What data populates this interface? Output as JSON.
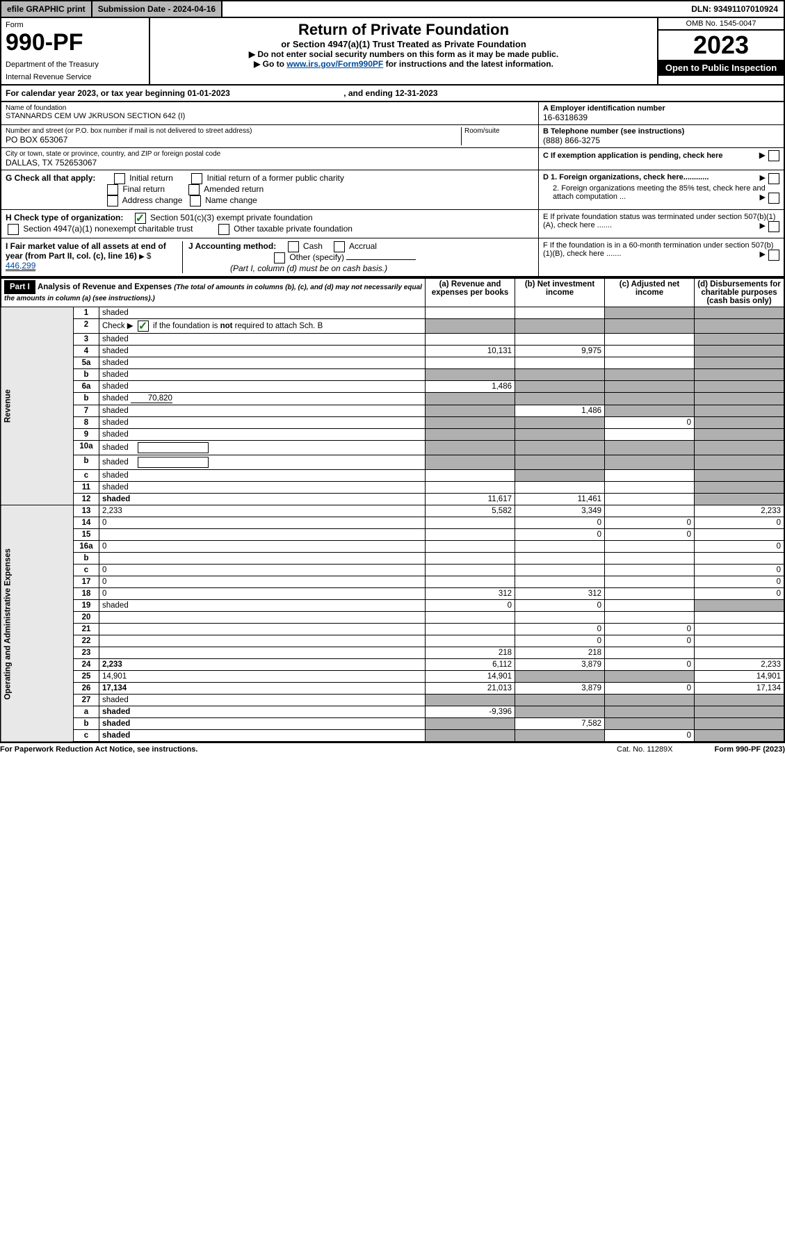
{
  "topbar": {
    "efile": "efile GRAPHIC print",
    "subdate_label": "Submission Date - 2024-04-16",
    "dln": "DLN: 93491107010924"
  },
  "header": {
    "form_label": "Form",
    "form_no": "990-PF",
    "dept": "Department of the Treasury",
    "irs": "Internal Revenue Service",
    "title": "Return of Private Foundation",
    "subtitle": "or Section 4947(a)(1) Trust Treated as Private Foundation",
    "instr1": "▶ Do not enter social security numbers on this form as it may be made public.",
    "instr2_pre": "▶ Go to ",
    "instr2_link": "www.irs.gov/Form990PF",
    "instr2_post": " for instructions and the latest information.",
    "omb": "OMB No. 1545-0047",
    "year": "2023",
    "open": "Open to Public Inspection"
  },
  "cal": {
    "text_pre": "For calendar year 2023, or tax year beginning ",
    "begin": "01-01-2023",
    "text_mid": " , and ending ",
    "end": "12-31-2023"
  },
  "id": {
    "name_label": "Name of foundation",
    "name": "STANNARDS CEM UW JKRUSON SECTION 642 (I)",
    "ein_label": "A Employer identification number",
    "ein": "16-6318639",
    "addr_label": "Number and street (or P.O. box number if mail is not delivered to street address)",
    "addr": "PO BOX 653067",
    "room_label": "Room/suite",
    "tel_label": "B Telephone number (see instructions)",
    "tel": "(888) 866-3275",
    "city_label": "City or town, state or province, country, and ZIP or foreign postal code",
    "city": "DALLAS, TX  752653067",
    "c_label": "C If exemption application is pending, check here"
  },
  "checks": {
    "g_label": "G Check all that apply:",
    "g_opts": [
      "Initial return",
      "Initial return of a former public charity",
      "Final return",
      "Amended return",
      "Address change",
      "Name change"
    ],
    "h_label": "H Check type of organization:",
    "h_501c3": "Section 501(c)(3) exempt private foundation",
    "h_4947": "Section 4947(a)(1) nonexempt charitable trust",
    "h_other": "Other taxable private foundation",
    "d1": "D 1. Foreign organizations, check here............",
    "d2": "2. Foreign organizations meeting the 85% test, check here and attach computation ...",
    "e": "E  If private foundation status was terminated under section 507(b)(1)(A), check here .......",
    "f": "F  If the foundation is in a 60-month termination under section 507(b)(1)(B), check here .......",
    "i_label": "I Fair market value of all assets at end of year (from Part II, col. (c), line 16)",
    "i_val": "446,299",
    "j_label": "J Accounting method:",
    "j_cash": "Cash",
    "j_accrual": "Accrual",
    "j_other": "Other (specify)",
    "j_note": "(Part I, column (d) must be on cash basis.)"
  },
  "part1": {
    "label": "Part I",
    "title": "Analysis of Revenue and Expenses",
    "title_note": "(The total of amounts in columns (b), (c), and (d) may not necessarily equal the amounts in column (a) (see instructions).)",
    "col_a": "(a)  Revenue and expenses per books",
    "col_b": "(b)  Net investment income",
    "col_c": "(c)  Adjusted net income",
    "col_d": "(d)  Disbursements for charitable purposes (cash basis only)",
    "rev_label": "Revenue",
    "exp_label": "Operating and Administrative Expenses"
  },
  "rows": [
    {
      "n": "1",
      "d": "shaded",
      "a": "",
      "b": "",
      "c": "shaded"
    },
    {
      "n": "2",
      "d": "shaded",
      "a": "shaded",
      "b": "shaded",
      "c": "shaded",
      "checked": true
    },
    {
      "n": "3",
      "d": "shaded",
      "a": "",
      "b": "",
      "c": ""
    },
    {
      "n": "4",
      "d": "shaded",
      "a": "10,131",
      "b": "9,975",
      "c": ""
    },
    {
      "n": "5a",
      "d": "shaded",
      "a": "",
      "b": "",
      "c": ""
    },
    {
      "n": "b",
      "d": "shaded",
      "a": "shaded",
      "b": "shaded",
      "c": "shaded",
      "underline": true
    },
    {
      "n": "6a",
      "d": "shaded",
      "a": "1,486",
      "b": "shaded",
      "c": "shaded"
    },
    {
      "n": "b",
      "d": "shaded",
      "sub": "70,820",
      "a": "shaded",
      "b": "shaded",
      "c": "shaded"
    },
    {
      "n": "7",
      "d": "shaded",
      "a": "shaded",
      "b": "1,486",
      "c": "shaded"
    },
    {
      "n": "8",
      "d": "shaded",
      "a": "shaded",
      "b": "shaded",
      "c": "0"
    },
    {
      "n": "9",
      "d": "shaded",
      "a": "shaded",
      "b": "shaded",
      "c": ""
    },
    {
      "n": "10a",
      "d": "shaded",
      "a": "shaded",
      "b": "shaded",
      "c": "shaded",
      "box": true
    },
    {
      "n": "b",
      "d": "shaded",
      "a": "shaded",
      "b": "shaded",
      "c": "shaded",
      "box": true
    },
    {
      "n": "c",
      "d": "shaded",
      "a": "",
      "b": "shaded",
      "c": ""
    },
    {
      "n": "11",
      "d": "shaded",
      "a": "",
      "b": "",
      "c": ""
    },
    {
      "n": "12",
      "d": "shaded",
      "a": "11,617",
      "b": "11,461",
      "c": "",
      "bold": true
    }
  ],
  "exp_rows": [
    {
      "n": "13",
      "d": "2,233",
      "a": "5,582",
      "b": "3,349",
      "c": ""
    },
    {
      "n": "14",
      "d": "0",
      "a": "",
      "b": "0",
      "c": "0"
    },
    {
      "n": "15",
      "d": "",
      "a": "",
      "b": "0",
      "c": "0"
    },
    {
      "n": "16a",
      "d": "0",
      "a": "",
      "b": "",
      "c": ""
    },
    {
      "n": "b",
      "d": "",
      "a": "",
      "b": "",
      "c": ""
    },
    {
      "n": "c",
      "d": "0",
      "a": "",
      "b": "",
      "c": ""
    },
    {
      "n": "17",
      "d": "0",
      "a": "",
      "b": "",
      "c": ""
    },
    {
      "n": "18",
      "d": "0",
      "a": "312",
      "b": "312",
      "c": ""
    },
    {
      "n": "19",
      "d": "shaded",
      "a": "0",
      "b": "0",
      "c": ""
    },
    {
      "n": "20",
      "d": "",
      "a": "",
      "b": "",
      "c": ""
    },
    {
      "n": "21",
      "d": "",
      "a": "",
      "b": "0",
      "c": "0"
    },
    {
      "n": "22",
      "d": "",
      "a": "",
      "b": "0",
      "c": "0"
    },
    {
      "n": "23",
      "d": "",
      "a": "218",
      "b": "218",
      "c": ""
    },
    {
      "n": "24",
      "d": "2,233",
      "a": "6,112",
      "b": "3,879",
      "c": "0",
      "bold": true
    },
    {
      "n": "25",
      "d": "14,901",
      "a": "14,901",
      "b": "shaded",
      "c": "shaded"
    },
    {
      "n": "26",
      "d": "17,134",
      "a": "21,013",
      "b": "3,879",
      "c": "0",
      "bold": true
    },
    {
      "n": "27",
      "d": "shaded",
      "a": "shaded",
      "b": "shaded",
      "c": "shaded"
    },
    {
      "n": "a",
      "d": "shaded",
      "a": "-9,396",
      "b": "shaded",
      "c": "shaded",
      "bold": true
    },
    {
      "n": "b",
      "d": "shaded",
      "a": "shaded",
      "b": "7,582",
      "c": "shaded",
      "bold": true
    },
    {
      "n": "c",
      "d": "shaded",
      "a": "shaded",
      "b": "shaded",
      "c": "0",
      "bold": true
    }
  ],
  "footer": {
    "pra": "For Paperwork Reduction Act Notice, see instructions.",
    "cat": "Cat. No. 11289X",
    "form": "Form 990-PF (2023)"
  }
}
